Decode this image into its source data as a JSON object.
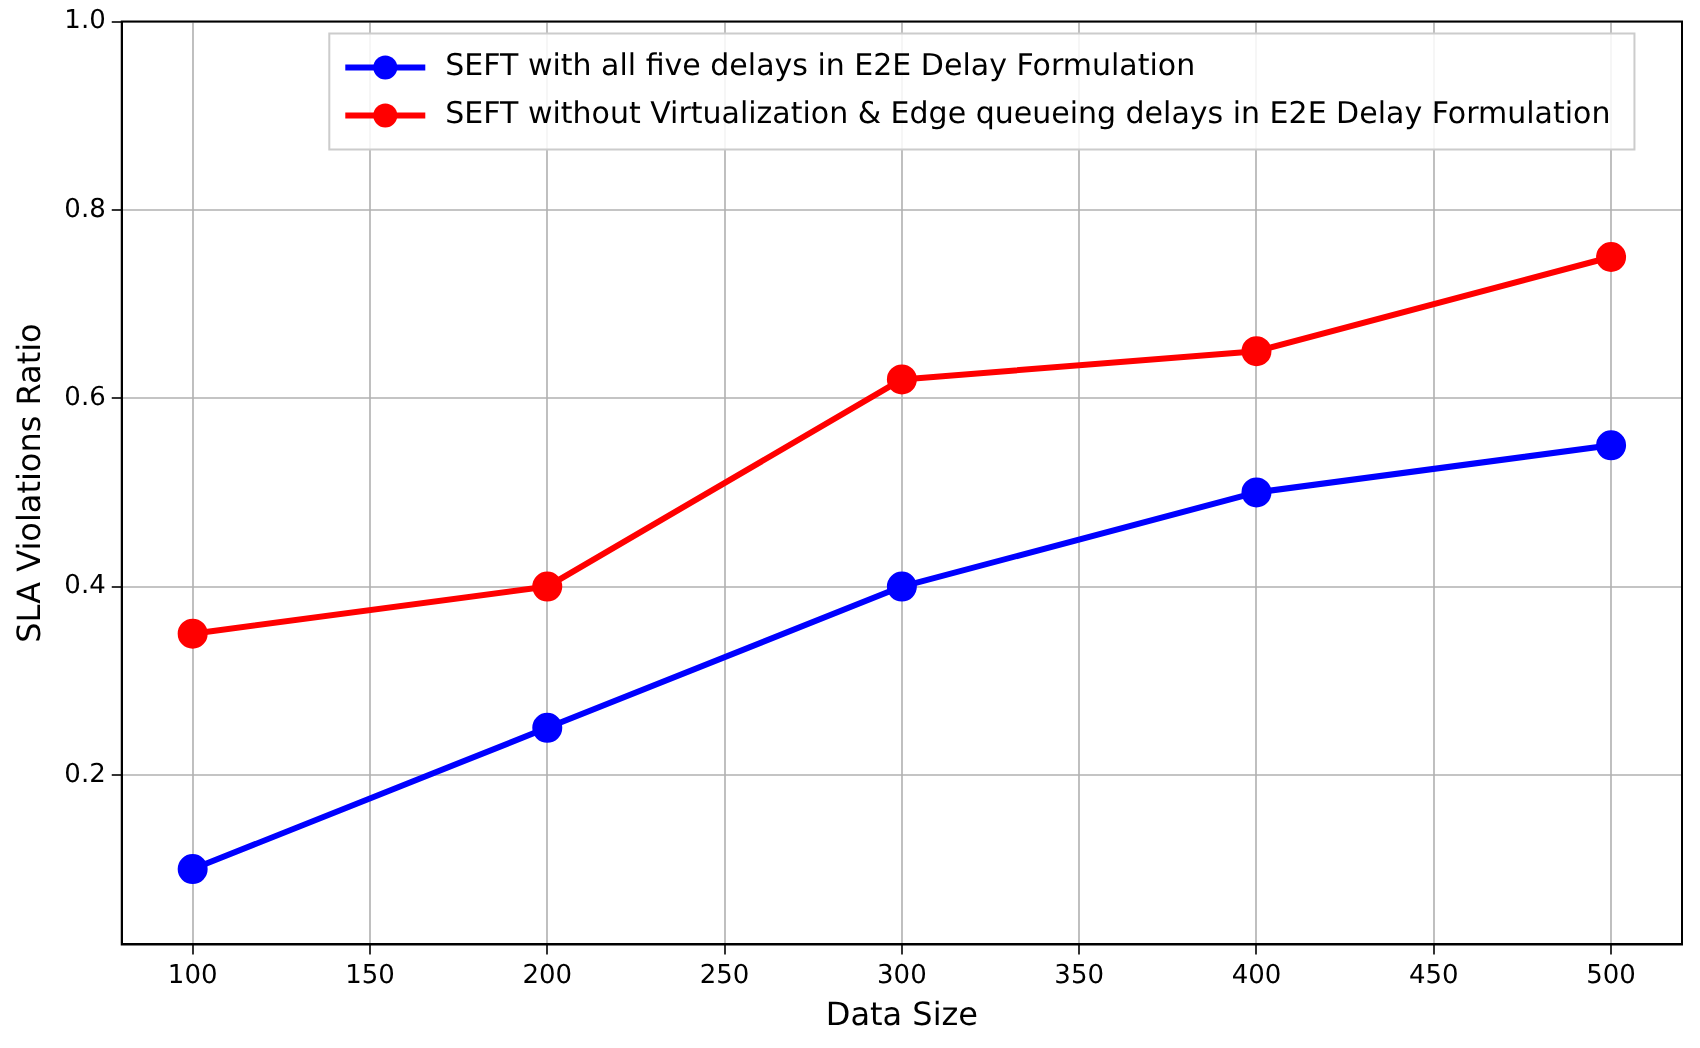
{
  "chart_data": {
    "type": "line",
    "xlabel": "Data Size",
    "ylabel": "SLA Violations Ratio",
    "x": [
      100,
      200,
      300,
      400,
      500
    ],
    "series": [
      {
        "name": "SEFT with all five delays in E2E Delay Formulation",
        "color": "#0000ff",
        "values": [
          0.1,
          0.25,
          0.4,
          0.5,
          0.55
        ]
      },
      {
        "name": "SEFT without Virtualization & Edge queueing delays in E2E Delay Formulation",
        "color": "#ff0000",
        "values": [
          0.35,
          0.4,
          0.62,
          0.65,
          0.75
        ]
      }
    ],
    "xlim": [
      80,
      520
    ],
    "xticks": [
      100,
      150,
      200,
      250,
      300,
      350,
      400,
      450,
      500
    ],
    "ylim": [
      0.02,
      1.0
    ],
    "yticks": [
      {
        "value": 0.2,
        "label": "0.2"
      },
      {
        "value": 0.4,
        "label": "0.4"
      },
      {
        "value": 0.6,
        "label": "0.6"
      },
      {
        "value": 0.8,
        "label": "0.8"
      },
      {
        "value": 1.0,
        "label": "1.0"
      }
    ],
    "grid": true,
    "legend": "top",
    "marker": "circle",
    "line_style": "solid"
  }
}
